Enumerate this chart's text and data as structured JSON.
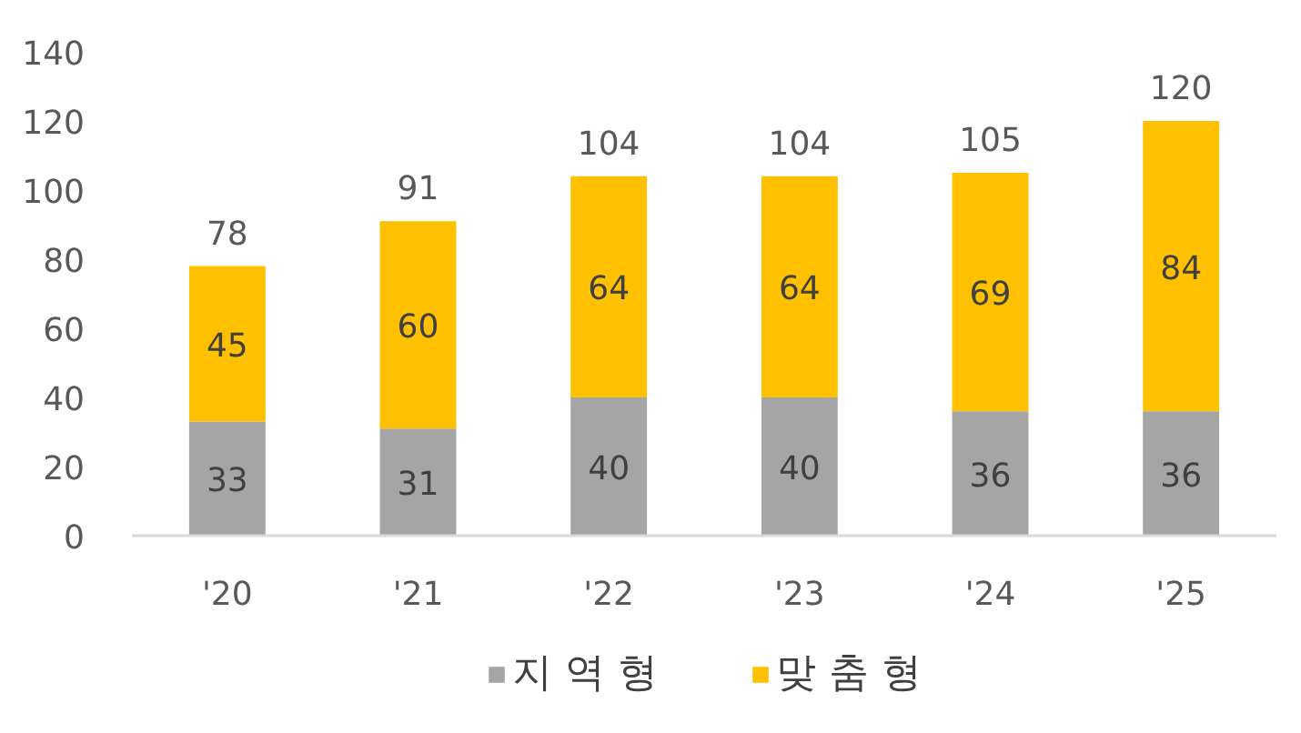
{
  "chart_data": {
    "type": "bar",
    "stacked": true,
    "categories": [
      "'20",
      "'21",
      "'22",
      "'23",
      "'24",
      "'25"
    ],
    "series": [
      {
        "name": "지 역 형",
        "color": "#a5a5a5",
        "values": [
          33,
          31,
          40,
          40,
          36,
          36
        ]
      },
      {
        "name": "맞 춤 형",
        "color": "#ffc000",
        "values": [
          45,
          60,
          64,
          64,
          69,
          84
        ]
      }
    ],
    "ylim": [
      0,
      140
    ],
    "yticks": [
      0,
      20,
      40,
      60,
      80,
      100,
      120,
      140
    ],
    "data_labels": true,
    "totals": [
      "78",
      "91",
      "104",
      "104",
      "105",
      "120"
    ],
    "legend": "bottom",
    "grid": false
  }
}
